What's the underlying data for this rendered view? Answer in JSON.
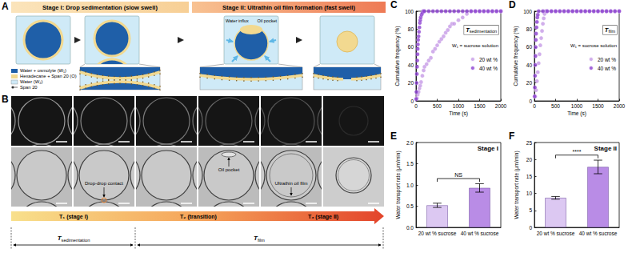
{
  "panels": {
    "A": {
      "label": "A",
      "stages": [
        "Stage I: Drop sedimentation (slow swell)",
        "Stage II: Ultrathin oil film formation (fast swell)"
      ],
      "callouts": {
        "water_influx": "Water influx",
        "oil_pocket": "Oil pocket"
      },
      "key": [
        "Water + osmolyte (W₁)",
        "Hexadecane + Span 20 (O)",
        "Water (W₂)",
        "Span 20"
      ]
    },
    "B": {
      "label": "B",
      "callouts": [
        "Drop-drop contact",
        "Oil pocket",
        "Ultrathin oil film"
      ],
      "phases": [
        "T₁ (stage I)",
        "T₂ (transition)",
        "T₃ (stage II)"
      ],
      "spans": [
        {
          "symbol": "T",
          "subscript": "sedimentation"
        },
        {
          "symbol": "T",
          "subscript": "film"
        }
      ]
    }
  },
  "chart_data": [
    {
      "panel": "C",
      "type": "scatter",
      "title_symbol": "T",
      "title_subscript": "sedimentation",
      "subtitle": "W₁ = sucrose solution",
      "x_label": "Time (s)",
      "y_label": "Cumulative frequency (%)",
      "xlim": [
        0,
        2000
      ],
      "xticks": [
        0,
        500,
        1000,
        1500,
        2000
      ],
      "ylim": [
        0,
        100
      ],
      "yticks": [
        0,
        20,
        40,
        60,
        80,
        100
      ],
      "grid": false,
      "legend": "right",
      "marker": "circle",
      "series": [
        {
          "name": "20 wt %",
          "color": "#c59ae6",
          "x": [
            20,
            40,
            60,
            80,
            100,
            120,
            150,
            180,
            200,
            250,
            300,
            350,
            400,
            450,
            500,
            550,
            600,
            650,
            700,
            750,
            800,
            850,
            900,
            1000,
            1100,
            1200,
            1300,
            1400,
            1500,
            1600,
            1700,
            1800,
            1900,
            2000
          ],
          "values": [
            3,
            7,
            10,
            14,
            17,
            21,
            28,
            34,
            38,
            41,
            45,
            48,
            55,
            58,
            62,
            66,
            69,
            72,
            76,
            79,
            83,
            86,
            86,
            90,
            93,
            97,
            100,
            100,
            100,
            100,
            100,
            100,
            100,
            100
          ]
        },
        {
          "name": "40 wt %",
          "color": "#8b3fd1",
          "x": [
            5,
            10,
            15,
            20,
            25,
            30,
            35,
            40,
            45,
            50,
            60,
            70,
            80,
            90,
            100,
            110,
            130,
            150,
            170,
            200,
            300,
            400,
            500,
            600,
            700,
            800,
            900,
            1000,
            1100,
            1200,
            1300,
            1400,
            1500,
            1600,
            1700,
            1800,
            1900,
            2000
          ],
          "values": [
            2,
            10,
            20,
            30,
            38,
            45,
            52,
            58,
            63,
            68,
            72,
            77,
            82,
            87,
            90,
            93,
            96,
            98,
            100,
            100,
            100,
            100,
            100,
            100,
            100,
            100,
            100,
            100,
            100,
            100,
            100,
            100,
            100,
            100,
            100,
            100,
            100,
            100
          ]
        }
      ]
    },
    {
      "panel": "D",
      "type": "scatter",
      "title_symbol": "T",
      "title_subscript": "film",
      "subtitle": "W₁ = sucrose solution",
      "x_label": "Time (s)",
      "y_label": "Cumulative frequency (%)",
      "xlim": [
        0,
        2000
      ],
      "xticks": [
        0,
        500,
        1000,
        1500,
        2000
      ],
      "ylim": [
        0,
        100
      ],
      "yticks": [
        0,
        20,
        40,
        60,
        80,
        100
      ],
      "grid": false,
      "legend": "right",
      "marker": "circle",
      "series": [
        {
          "name": "20 wt %",
          "color": "#c59ae6",
          "x": [
            20,
            40,
            60,
            80,
            100,
            120,
            140,
            160,
            180,
            200,
            220,
            240,
            260,
            300,
            400,
            500,
            600,
            700,
            800,
            900,
            1000,
            1100,
            1200,
            1300,
            1400,
            1500,
            1600,
            1700,
            1800,
            1900,
            2000
          ],
          "values": [
            5,
            12,
            22,
            32,
            42,
            52,
            62,
            70,
            78,
            86,
            92,
            97,
            100,
            100,
            100,
            100,
            100,
            100,
            100,
            100,
            100,
            100,
            100,
            100,
            100,
            100,
            100,
            100,
            100,
            100,
            100
          ]
        },
        {
          "name": "40 wt %",
          "color": "#8b3fd1",
          "x": [
            5,
            10,
            15,
            20,
            25,
            30,
            35,
            40,
            50,
            60,
            70,
            80,
            100,
            200,
            300,
            400,
            500,
            600,
            700,
            800,
            900,
            1000,
            1100,
            1200,
            1300,
            1400,
            1500,
            1600,
            1700,
            1800,
            1900,
            2000
          ],
          "values": [
            5,
            15,
            28,
            40,
            50,
            60,
            68,
            75,
            82,
            88,
            93,
            96,
            100,
            100,
            100,
            100,
            100,
            100,
            100,
            100,
            100,
            100,
            100,
            100,
            100,
            100,
            100,
            100,
            100,
            100,
            100,
            100
          ]
        }
      ]
    },
    {
      "panel": "E",
      "type": "bar",
      "title": "Stage I",
      "y_label": "Water transport rate (μm/min)",
      "categories": [
        "20 wt % sucrose",
        "40 wt % sucrose"
      ],
      "values": [
        0.52,
        0.93
      ],
      "errors": [
        0.05,
        0.1
      ],
      "colors": [
        "#dcc8f2",
        "#b98ce6"
      ],
      "significance": "NS",
      "ylim": [
        0,
        2
      ],
      "yticks": [
        {
          "value": 0,
          "label": "0.0"
        },
        {
          "value": 0.5,
          "label": "0.5"
        },
        {
          "value": 1,
          "label": "1.0"
        },
        {
          "value": 1.5,
          "label": "1.5"
        },
        {
          "value": 2,
          "label": "2.0"
        }
      ],
      "grid": false
    },
    {
      "panel": "F",
      "type": "bar",
      "title": "Stage II",
      "y_label": "Water transport rate (μm/min)",
      "categories": [
        "20 wt % sucrose",
        "40 wt % sucrose"
      ],
      "values": [
        8.7,
        17.8
      ],
      "errors": [
        0.4,
        2
      ],
      "colors": [
        "#dcc8f2",
        "#b98ce6"
      ],
      "significance": "****",
      "ylim": [
        0,
        25
      ],
      "yticks": [
        0,
        5,
        10,
        15,
        20,
        25
      ],
      "grid": false
    }
  ]
}
